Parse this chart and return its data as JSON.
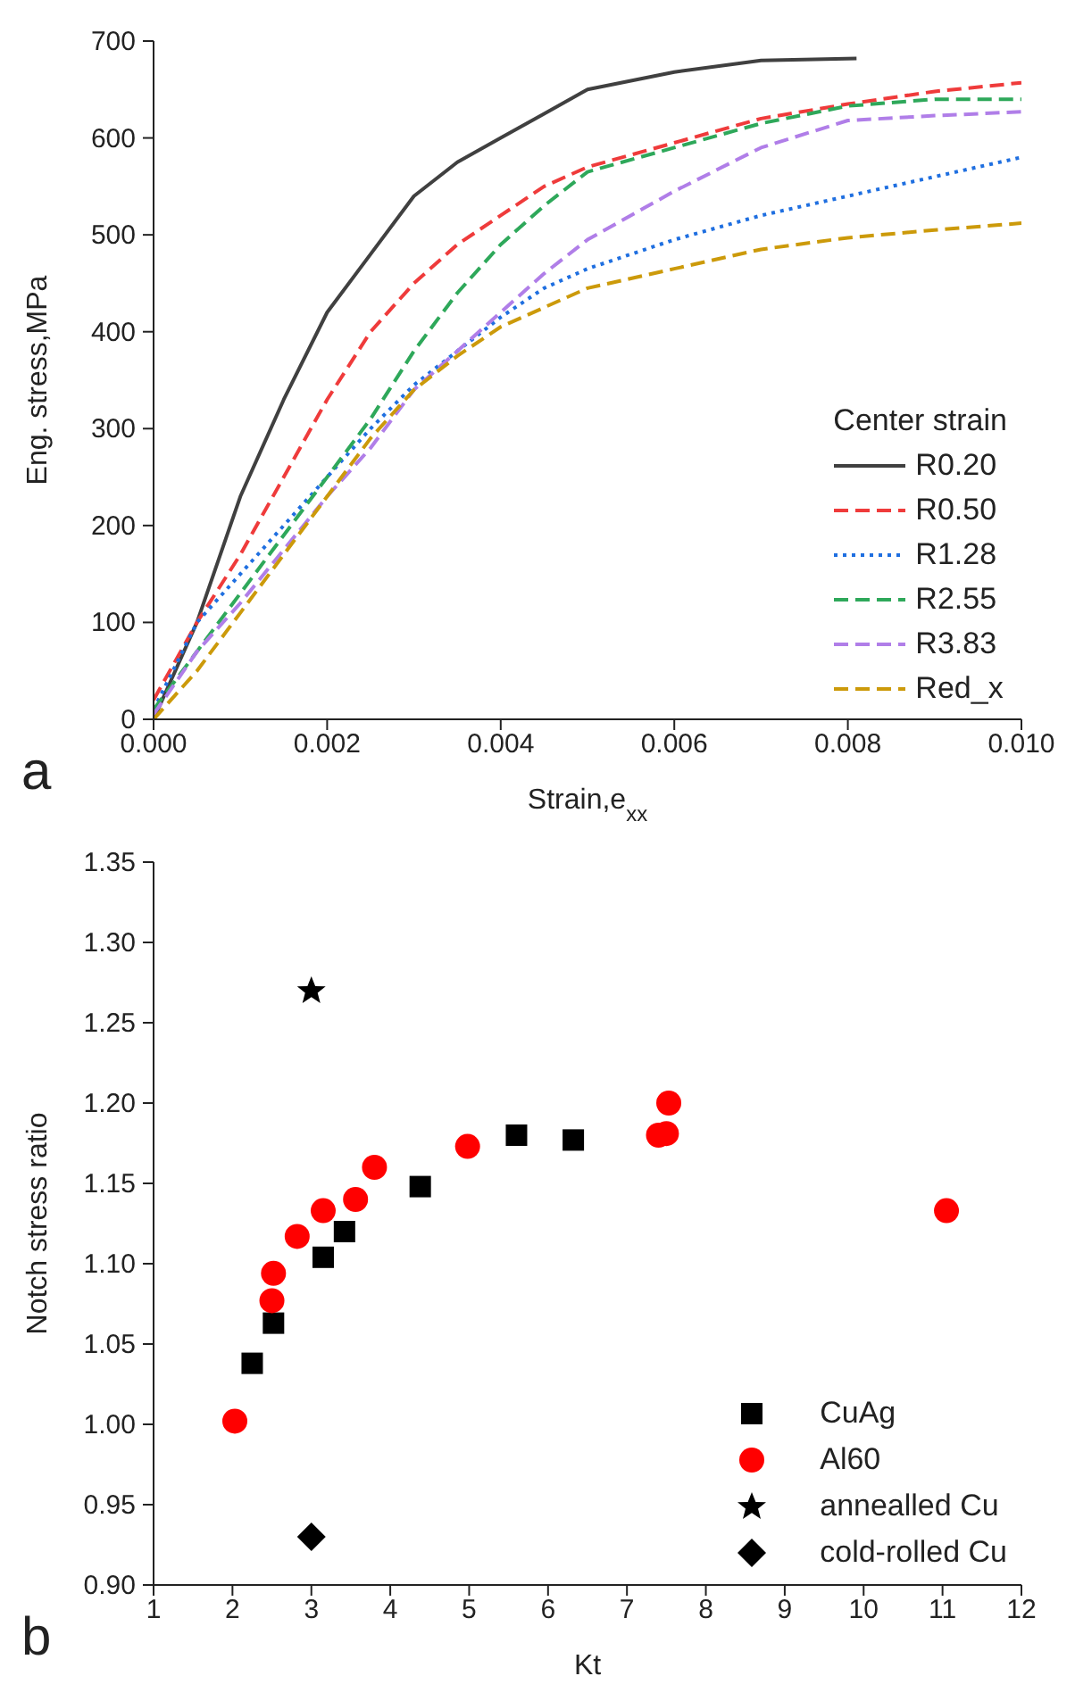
{
  "chart_data": [
    {
      "type": "line",
      "xlabel": "Strain,e$_{xx}$",
      "ylabel": "Eng. stress,MPa",
      "legend_title": "Center strain",
      "legend": "bottom right",
      "grid": false,
      "marker": "none",
      "xlim": [
        0,
        0.01
      ],
      "xticks": [
        {
          "value": 0,
          "label": "0.000"
        },
        {
          "value": 0.002,
          "label": "0.002"
        },
        {
          "value": 0.004,
          "label": "0.004"
        },
        {
          "value": 0.006,
          "label": "0.006"
        },
        {
          "value": 0.008,
          "label": "0.008"
        },
        {
          "value": 0.01,
          "label": "0.010"
        }
      ],
      "ylim": [
        0,
        700
      ],
      "yticks": [
        0,
        100,
        200,
        300,
        400,
        500,
        600,
        700
      ],
      "annotations": [
        "a"
      ],
      "series": [
        {
          "name": "R0.20",
          "color": "#404040",
          "line_style": "solid",
          "x": [
            0,
            0.0005,
            0.001,
            0.0015,
            0.002,
            0.0025,
            0.003,
            0.0035,
            0.004,
            0.0045,
            0.005,
            0.006,
            0.007,
            0.0081
          ],
          "values": [
            0,
            100,
            230,
            330,
            420,
            480,
            540,
            575,
            600,
            625,
            650,
            668,
            680,
            682
          ]
        },
        {
          "name": "R0.50",
          "color": "#ef3b3b",
          "line_style": "dashed",
          "x": [
            0,
            0.0005,
            0.001,
            0.0015,
            0.002,
            0.0025,
            0.003,
            0.0035,
            0.004,
            0.0045,
            0.005,
            0.006,
            0.007,
            0.008,
            0.009,
            0.01
          ],
          "values": [
            20,
            100,
            170,
            250,
            330,
            400,
            450,
            490,
            520,
            550,
            570,
            595,
            620,
            635,
            648,
            657
          ]
        },
        {
          "name": "R1.28",
          "color": "#1f6fe0",
          "line_style": "dotted",
          "x": [
            0,
            0.0005,
            0.001,
            0.0015,
            0.002,
            0.0025,
            0.003,
            0.0035,
            0.004,
            0.0045,
            0.005,
            0.006,
            0.007,
            0.008,
            0.009,
            0.01
          ],
          "values": [
            10,
            100,
            150,
            200,
            250,
            300,
            345,
            380,
            415,
            445,
            465,
            495,
            520,
            540,
            560,
            580
          ]
        },
        {
          "name": "R2.55",
          "color": "#2ea85a",
          "line_style": "dashed",
          "x": [
            0,
            0.0005,
            0.001,
            0.0015,
            0.002,
            0.0025,
            0.003,
            0.0035,
            0.004,
            0.0045,
            0.005,
            0.006,
            0.007,
            0.008,
            0.009,
            0.01
          ],
          "values": [
            10,
            70,
            130,
            190,
            250,
            310,
            380,
            440,
            490,
            530,
            565,
            590,
            615,
            633,
            640,
            640
          ]
        },
        {
          "name": "R3.83",
          "color": "#b07ee8",
          "line_style": "dashed",
          "x": [
            0,
            0.0005,
            0.001,
            0.0015,
            0.002,
            0.0025,
            0.003,
            0.0035,
            0.004,
            0.0045,
            0.005,
            0.006,
            0.007,
            0.008,
            0.009,
            0.01
          ],
          "values": [
            5,
            70,
            120,
            175,
            230,
            280,
            340,
            380,
            420,
            460,
            495,
            545,
            590,
            618,
            623,
            627
          ]
        },
        {
          "name": "Red_x",
          "color": "#cc9a0a",
          "line_style": "dashed",
          "x": [
            0,
            0.0005,
            0.001,
            0.0015,
            0.002,
            0.0025,
            0.003,
            0.0035,
            0.004,
            0.0045,
            0.005,
            0.006,
            0.007,
            0.008,
            0.009,
            0.01
          ],
          "values": [
            0,
            50,
            110,
            170,
            230,
            290,
            340,
            375,
            405,
            425,
            445,
            465,
            485,
            497,
            505,
            512
          ]
        }
      ]
    },
    {
      "type": "scatter",
      "xlabel": "Kt",
      "ylabel": "Notch stress ratio",
      "legend": "bottom right",
      "grid": false,
      "xlim": [
        1,
        12
      ],
      "xticks": [
        1,
        2,
        3,
        4,
        5,
        6,
        7,
        8,
        9,
        10,
        11,
        12
      ],
      "ylim": [
        0.9,
        1.35
      ],
      "yticks": [
        {
          "value": 0.9,
          "label": "0.90"
        },
        {
          "value": 0.95,
          "label": "0.95"
        },
        {
          "value": 1,
          "label": "1.00"
        },
        {
          "value": 1.05,
          "label": "1.05"
        },
        {
          "value": 1.1,
          "label": "1.10"
        },
        {
          "value": 1.15,
          "label": "1.15"
        },
        {
          "value": 1.2,
          "label": "1.20"
        },
        {
          "value": 1.25,
          "label": "1.25"
        },
        {
          "value": 1.3,
          "label": "1.30"
        },
        {
          "value": 1.35,
          "label": "1.35"
        }
      ],
      "annotations": [
        "b"
      ],
      "series": [
        {
          "name": "CuAg",
          "color": "#000000",
          "marker": "square",
          "x": [
            2.25,
            2.52,
            3.15,
            3.42,
            4.38,
            5.6,
            6.32
          ],
          "values": [
            1.038,
            1.063,
            1.104,
            1.12,
            1.148,
            1.18,
            1.177
          ]
        },
        {
          "name": "Al60",
          "color": "#ff0000",
          "marker": "circle",
          "x": [
            2.03,
            2.5,
            2.52,
            2.82,
            3.15,
            3.56,
            3.8,
            4.98,
            7.4,
            7.5,
            7.53,
            11.05
          ],
          "values": [
            1.002,
            1.077,
            1.094,
            1.117,
            1.133,
            1.14,
            1.16,
            1.173,
            1.18,
            1.181,
            1.2,
            1.133
          ]
        },
        {
          "name": "annealled Cu",
          "color": "#000000",
          "marker": "star",
          "x": [
            3
          ],
          "values": [
            1.27
          ]
        },
        {
          "name": "cold-rolled Cu",
          "color": "#000000",
          "marker": "diamond",
          "x": [
            3
          ],
          "values": [
            0.93
          ]
        }
      ]
    }
  ]
}
